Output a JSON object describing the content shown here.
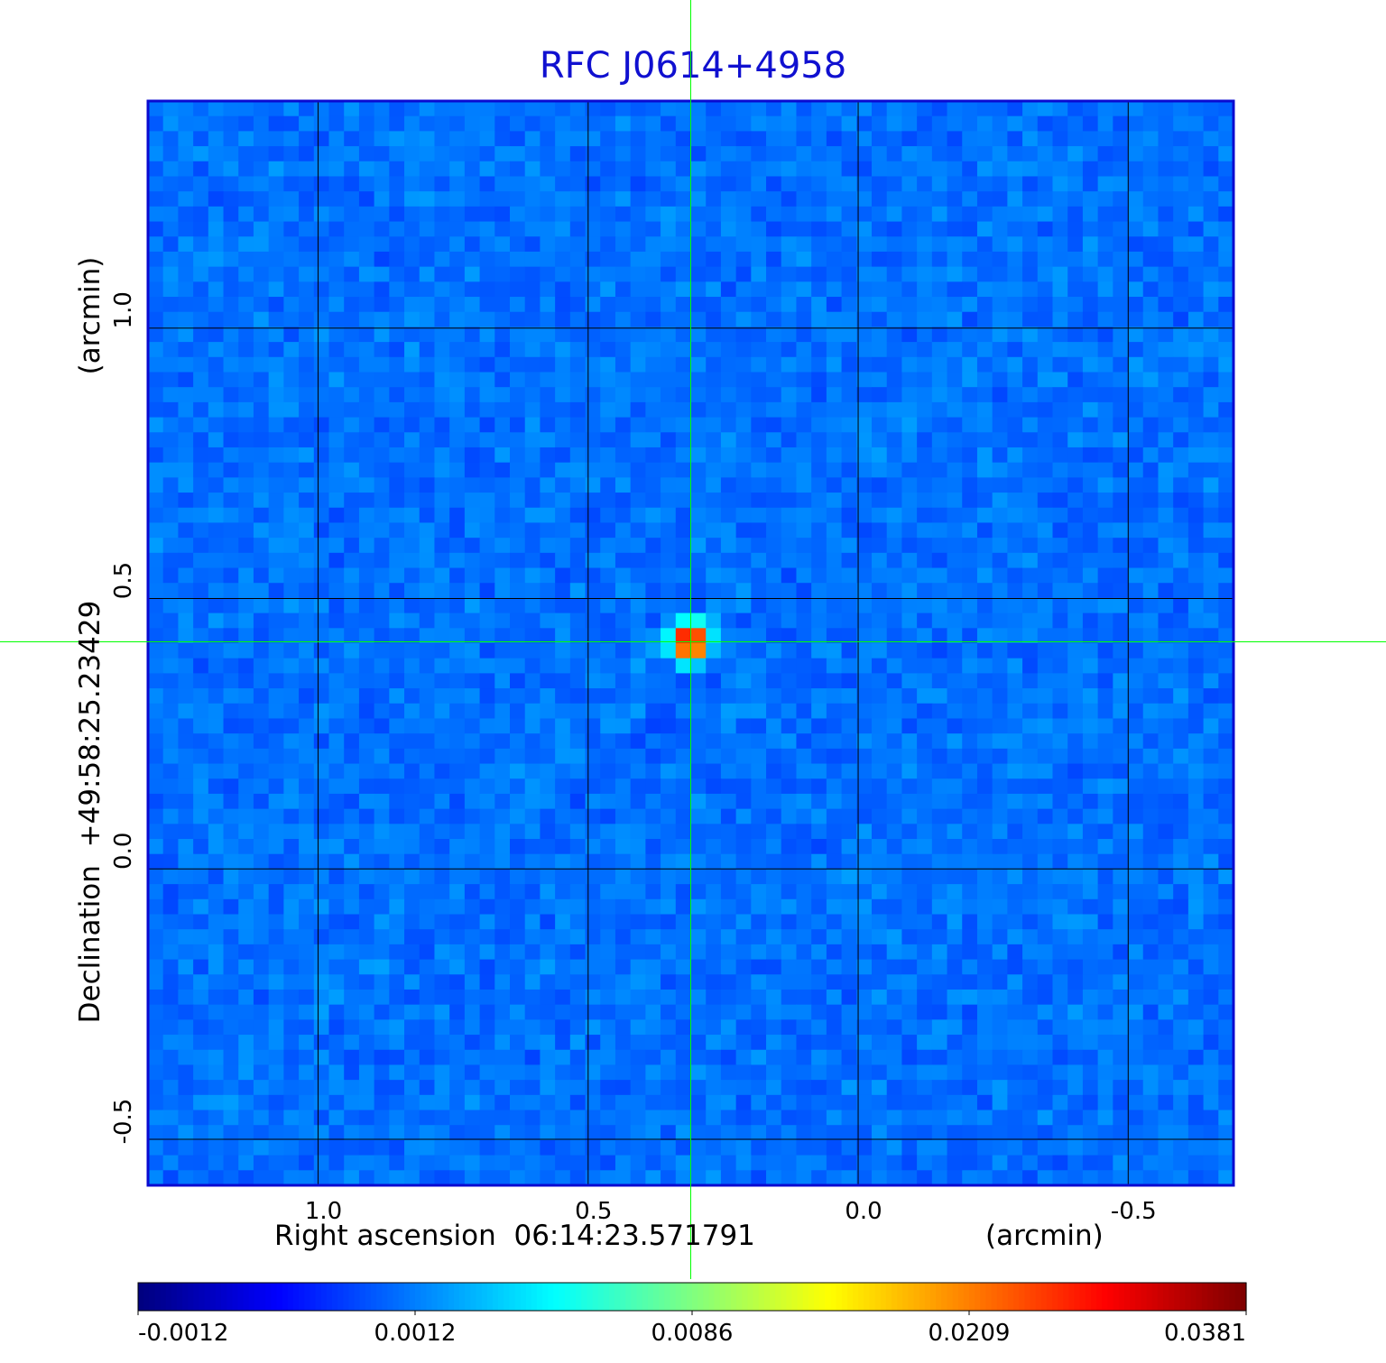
{
  "chart_data": {
    "type": "heatmap",
    "title": "RFC J0614+4958",
    "xlabel_left": "Right ascension  06:14:23.571791",
    "xlabel_right": "(arcmin)",
    "ylabel_left": "Declination  +49:58:25.23429",
    "ylabel_right": "(arcmin)",
    "xlim": [
      1.315,
      -0.695
    ],
    "ylim": [
      -0.585,
      1.42
    ],
    "x_ticks": [
      {
        "value": 1.0,
        "label": "1.0"
      },
      {
        "value": 0.5,
        "label": "0.5"
      },
      {
        "value": 0.0,
        "label": "0.0"
      },
      {
        "value": -0.5,
        "label": "-0.5"
      }
    ],
    "y_ticks": [
      {
        "value": 1.0,
        "label": "1.0"
      },
      {
        "value": 0.5,
        "label": "0.5"
      },
      {
        "value": 0.0,
        "label": "0.0"
      },
      {
        "value": -0.5,
        "label": "-0.5"
      }
    ],
    "grid": true,
    "source": {
      "x": 0.31,
      "y": 0.42,
      "peak": 0.0381
    },
    "crosshair": {
      "x": 0.31,
      "y": 0.42,
      "color": "#00ff00"
    },
    "background_level": 0.0,
    "colorbar": {
      "colormap": "jet",
      "ticks": [
        "-0.0012",
        "0.0012",
        "0.0086",
        "0.0209",
        "0.0381"
      ]
    },
    "colors": {
      "title": "#1010d0",
      "frame": "#0a0ad0",
      "grid": "#000000",
      "crosshair": "#00ff00"
    }
  }
}
